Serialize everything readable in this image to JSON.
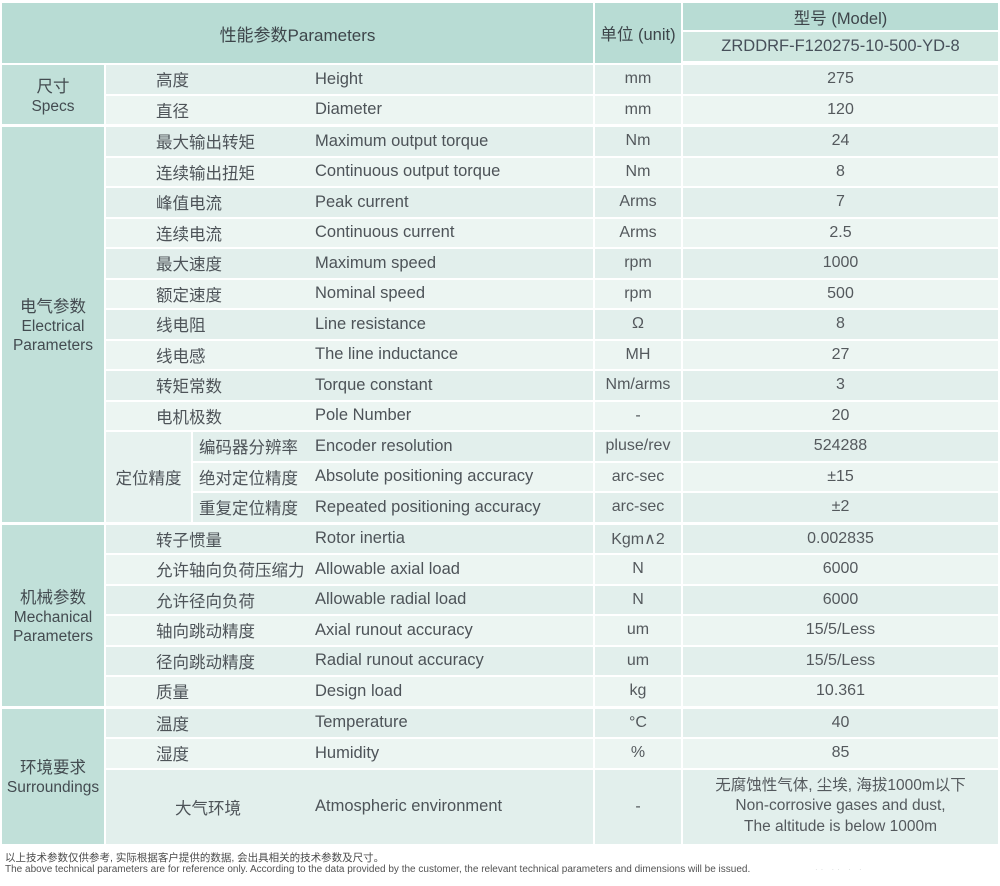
{
  "header": {
    "parameters_label": "性能参数Parameters",
    "unit_label": "单位 (unit)",
    "model_label": "型号 (Model)",
    "model_value": "ZRDDRF-F120275-10-500-YD-8"
  },
  "colors": {
    "header_green": "#b8dcd4",
    "group_green": "#c1e0d9",
    "model_cell_green": "#cfe7e0",
    "row_dark": "#e2efec",
    "row_light": "#ecf5f2"
  },
  "sections": [
    {
      "group_cn": "尺寸",
      "group_en": "Specs",
      "blocks": [
        {
          "rows": [
            {
              "cn": "高度",
              "en": "Height",
              "unit": "mm",
              "value": "275"
            },
            {
              "cn": "直径",
              "en": "Diameter",
              "unit": "mm",
              "value": "120"
            }
          ]
        }
      ]
    },
    {
      "group_cn": "电气参数",
      "group_en": "Electrical Parameters",
      "blocks": [
        {
          "rows": [
            {
              "cn": "最大输出转矩",
              "en": "Maximum output torque",
              "unit": "Nm",
              "value": "24"
            },
            {
              "cn": "连续输出扭矩",
              "en": "Continuous output torque",
              "unit": "Nm",
              "value": "8"
            },
            {
              "cn": "峰值电流",
              "en": "Peak current",
              "unit": "Arms",
              "value": "7"
            },
            {
              "cn": "连续电流",
              "en": "Continuous current",
              "unit": "Arms",
              "value": "2.5"
            },
            {
              "cn": "最大速度",
              "en": "Maximum speed",
              "unit": "rpm",
              "value": "1000"
            },
            {
              "cn": "额定速度",
              "en": "Nominal speed",
              "unit": "rpm",
              "value": "500"
            },
            {
              "cn": "线电阻",
              "en": "Line resistance",
              "unit": "Ω",
              "value": "8"
            },
            {
              "cn": "线电感",
              "en": "The line inductance",
              "unit": "MH",
              "value": "27"
            },
            {
              "cn": "转矩常数",
              "en": "Torque constant",
              "unit": "Nm/arms",
              "value": "3"
            },
            {
              "cn": "电机极数",
              "en": "Pole Number",
              "unit": "-",
              "value": "20"
            }
          ]
        },
        {
          "subgroup": "定位精度",
          "rows": [
            {
              "cn": "编码器分辨率",
              "en": "Encoder resolution",
              "unit": "pluse/rev",
              "value": "524288"
            },
            {
              "cn": "绝对定位精度",
              "en": "Absolute positioning accuracy",
              "unit": "arc-sec",
              "value": "±15"
            },
            {
              "cn": "重复定位精度",
              "en": "Repeated positioning accuracy",
              "unit": "arc-sec",
              "value": "±2"
            }
          ]
        }
      ]
    },
    {
      "group_cn": "机械参数",
      "group_en": "Mechanical Parameters",
      "blocks": [
        {
          "rows": [
            {
              "cn": "转子惯量",
              "en": "Rotor inertia",
              "unit": "Kgm∧2",
              "value": "0.002835"
            },
            {
              "cn": "允许轴向负荷压缩力",
              "en": "Allowable axial load",
              "unit": "N",
              "value": "6000"
            },
            {
              "cn": "允许径向负荷",
              "en": "Allowable radial load",
              "unit": "N",
              "value": "6000"
            },
            {
              "cn": "轴向跳动精度",
              "en": "Axial runout accuracy",
              "unit": "um",
              "value": "15/5/Less"
            },
            {
              "cn": "径向跳动精度",
              "en": "Radial runout accuracy",
              "unit": "um",
              "value": "15/5/Less"
            },
            {
              "cn": "质量",
              "en": "Design load",
              "unit": "kg",
              "value": "10.361"
            }
          ]
        }
      ]
    },
    {
      "group_cn": "环境要求",
      "group_en": "Surroundings",
      "blocks": [
        {
          "rows": [
            {
              "cn": "温度",
              "en": "Temperature",
              "unit": "°C",
              "value": "40"
            },
            {
              "cn": "湿度",
              "en": "Humidity",
              "unit": "%",
              "value": "85"
            },
            {
              "cn": "大气环境",
              "en": "Atmospheric environment",
              "unit": "-",
              "tall": true,
              "center_cn": true,
              "value_lines": [
                "无腐蚀性气体, 尘埃, 海拔1000m以下",
                "Non-corrosive gases and dust,",
                "The altitude is below 1000m"
              ]
            }
          ]
        }
      ]
    }
  ],
  "footnotes": {
    "cn": "以上技术参数仅供参考, 实际根据客户提供的数据, 会出具相关的技术参数及尺寸。",
    "en": "The above technical parameters are for reference only. According to the data provided by the customer, the relevant technical parameters and dimensions will be issued."
  },
  "faint_marks": "·· ·· · ·"
}
